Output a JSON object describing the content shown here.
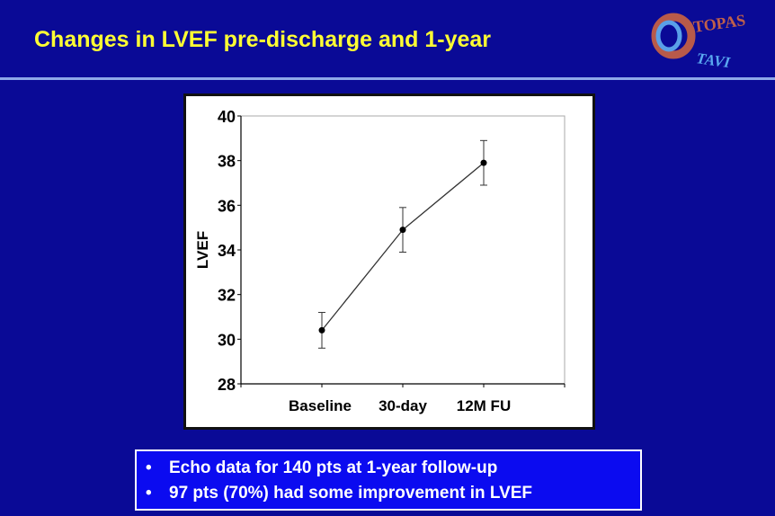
{
  "slide": {
    "title": "Changes in LVEF pre-discharge and 1-year",
    "logo": {
      "text_top": "TOPAS",
      "text_bottom": "TAVI"
    },
    "bullets": [
      "Echo data for 140 pts at 1-year follow-up",
      "97 pts (70%) had some improvement in LVEF"
    ]
  },
  "chart_data": {
    "type": "line",
    "title": "",
    "xlabel": "",
    "ylabel": "LVEF",
    "categories": [
      "Baseline",
      "30-day",
      "12M FU"
    ],
    "series": [
      {
        "name": "LVEF",
        "values": [
          30.4,
          34.9,
          37.9
        ],
        "error_low": [
          29.6,
          33.9,
          36.9
        ],
        "error_high": [
          31.2,
          35.9,
          38.9
        ]
      }
    ],
    "ylim": [
      28,
      40
    ],
    "yticks": [
      "28",
      "30",
      "32",
      "34",
      "36",
      "38",
      "40"
    ],
    "grid": false,
    "colors": {
      "line": "#333333",
      "point": "#000000"
    }
  }
}
